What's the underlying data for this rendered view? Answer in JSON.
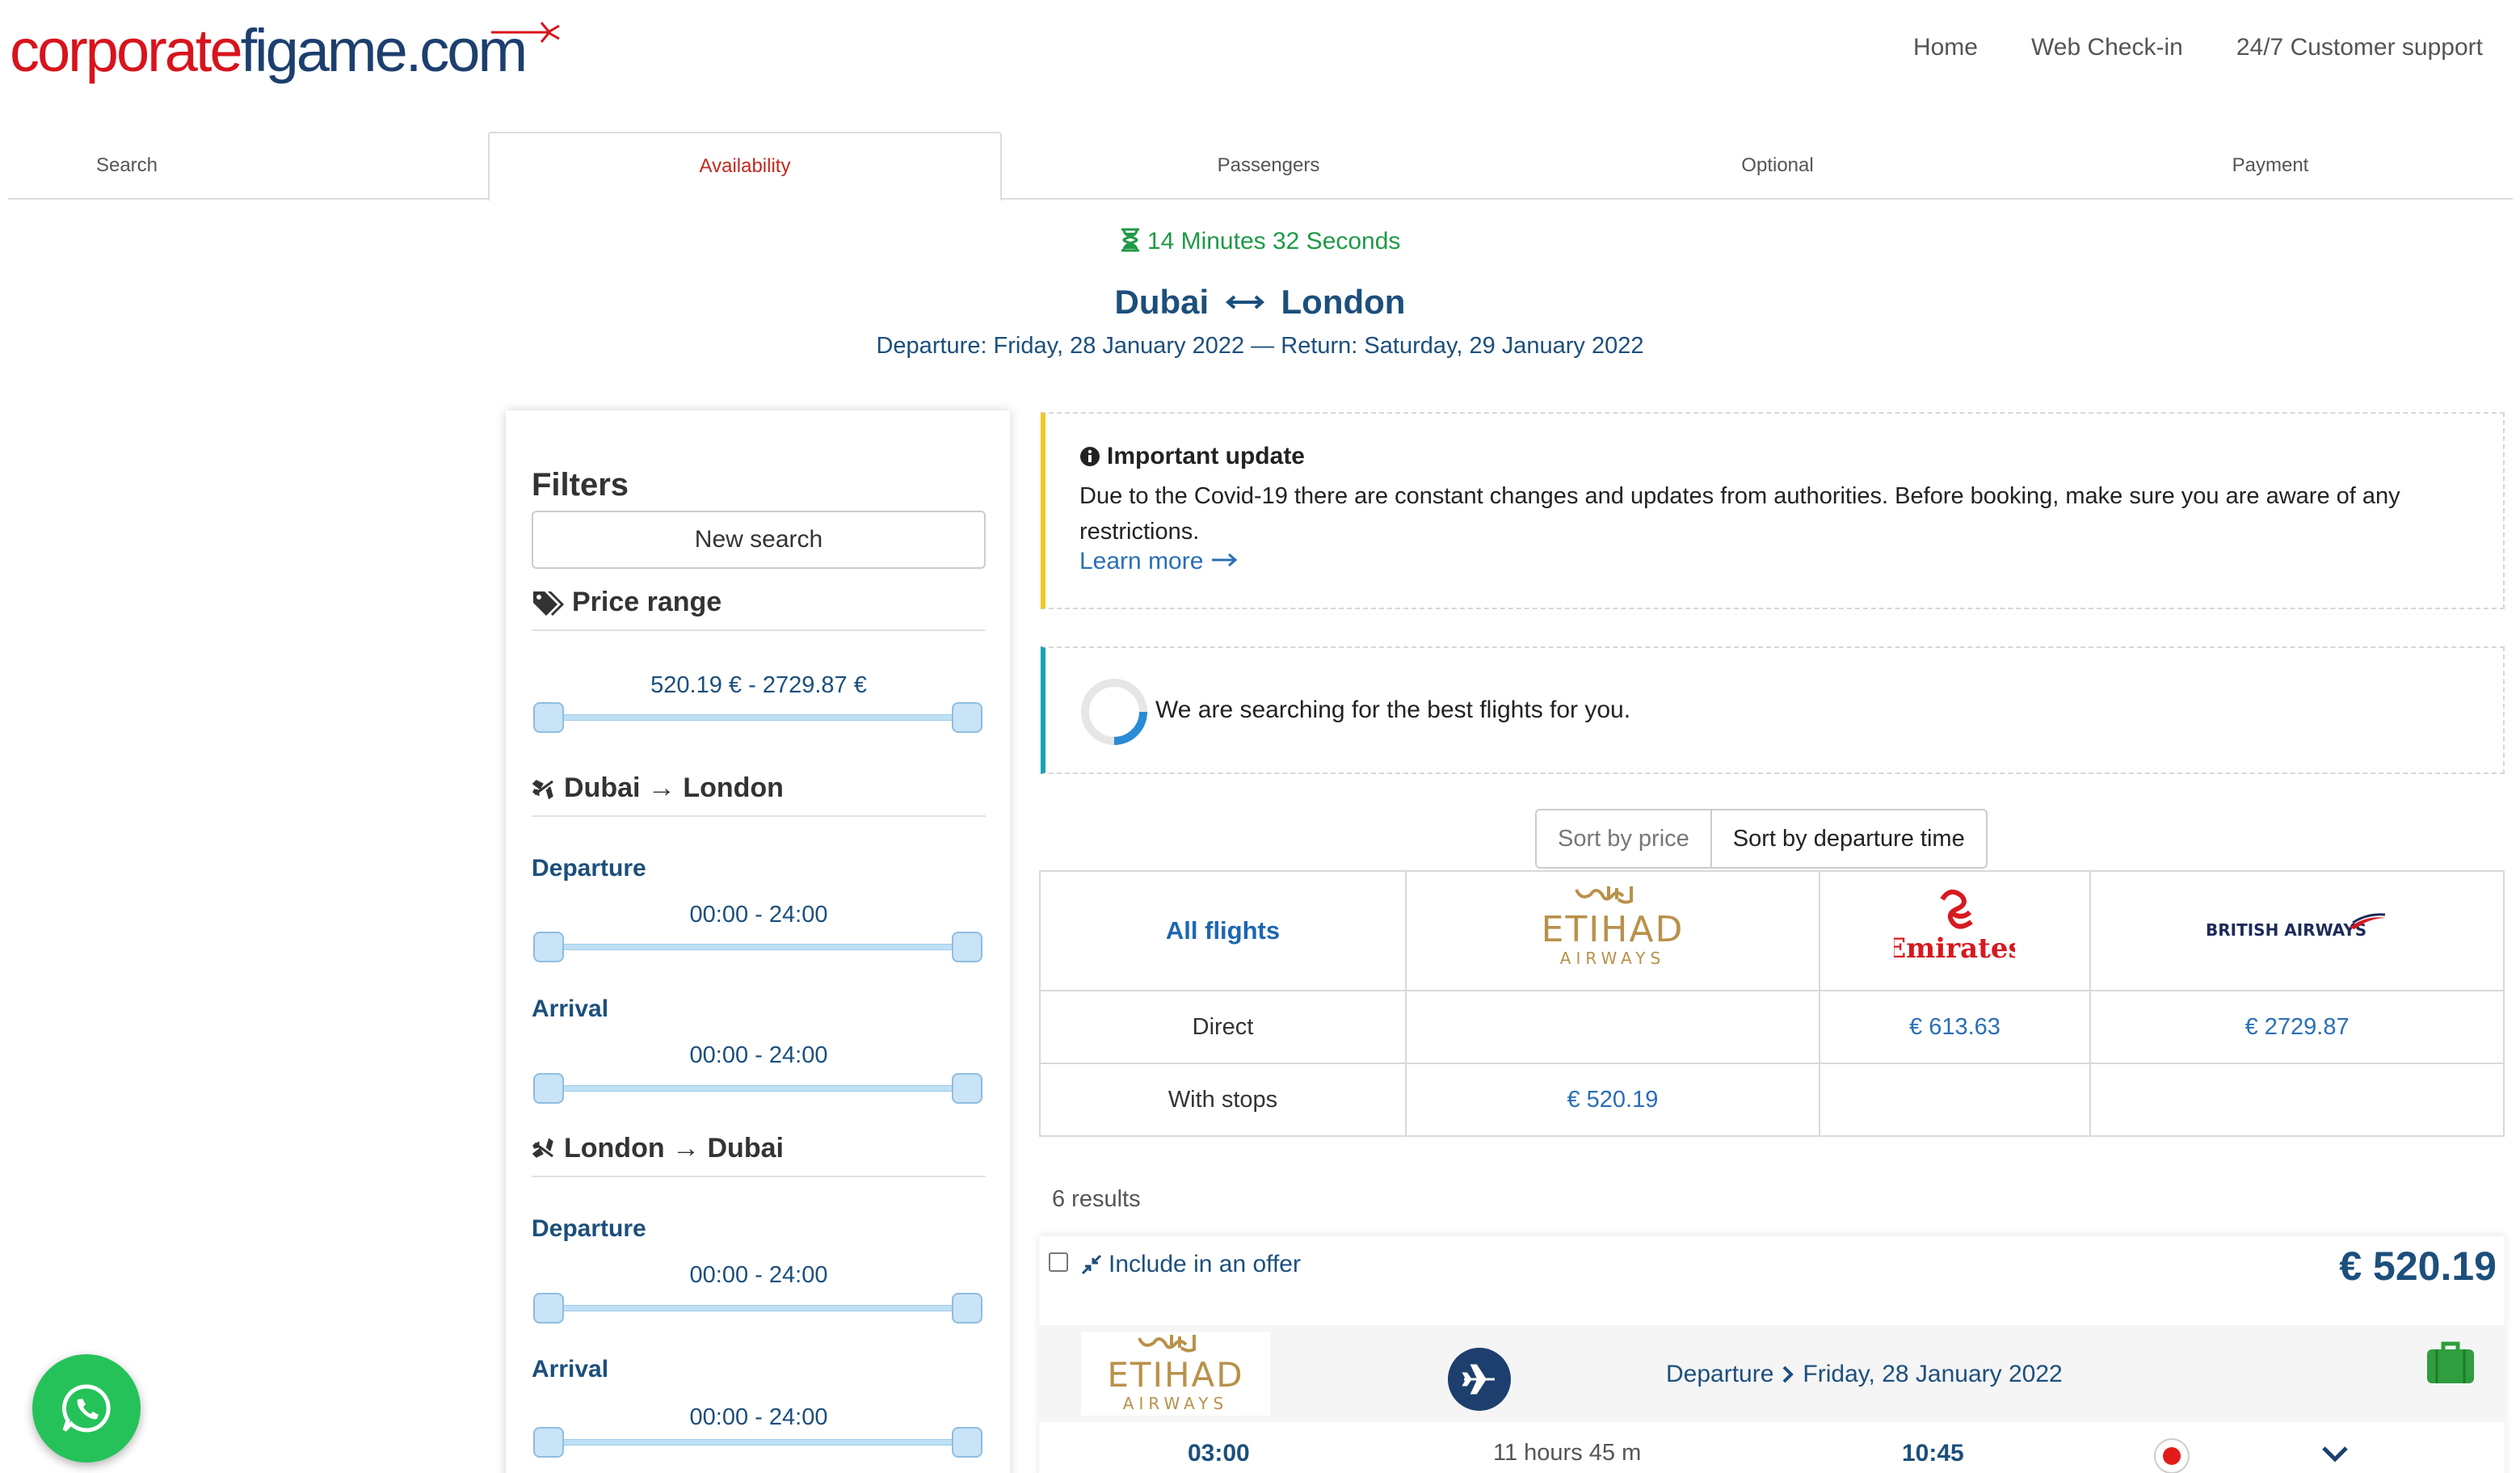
{
  "brand": {
    "logo_red": "corporate",
    "logo_blue": "figame.com"
  },
  "topnav": [
    "Home",
    "Web Check-in",
    "24/7 Customer support"
  ],
  "steps": [
    "Search",
    "Availability",
    "Passengers",
    "Optional",
    "Payment"
  ],
  "timer": "14 Minutes 32 Seconds",
  "route": {
    "from": "Dubai",
    "to": "London"
  },
  "dates": "Departure: Friday, 28 January 2022 — Return: Saturday, 29 January 2022",
  "filters": {
    "title": "Filters",
    "new_search": "New search",
    "price_range_title": "Price range",
    "price_range": "520.19 € - 2729.87 €",
    "outbound_title": "Dubai → London",
    "inbound_title": "London → Dubai",
    "departure_label": "Departure",
    "arrival_label": "Arrival",
    "time_range": "00:00 - 24:00"
  },
  "notice": {
    "title": "Important update",
    "body": "Due to the Covid-19 there are constant changes and updates from authorities. Before booking, make sure you are aware of any restrictions.",
    "link": "Learn more"
  },
  "searching": "We are searching for the best flights for you.",
  "sort": {
    "by_price": "Sort by price",
    "by_departure": "Sort by departure time"
  },
  "matrix": {
    "all_flights": "All flights",
    "airlines": [
      "Etihad Airways",
      "Emirates",
      "British Airways"
    ],
    "rows": [
      {
        "label": "Direct",
        "cells": [
          "",
          "€ 613.63",
          "€ 2729.87"
        ]
      },
      {
        "label": "With stops",
        "cells": [
          "€ 520.19",
          "",
          ""
        ]
      }
    ]
  },
  "results_count": "6 results",
  "card": {
    "offer_label": "Include in an offer",
    "price": "€ 520.19",
    "departure_label": "Departure",
    "departure_date": "Friday, 28 January 2022",
    "dep_time": "03:00",
    "duration": "11 hours 45 m",
    "arr_time": "10:45"
  },
  "colors": {
    "brand_red": "#d7141c",
    "brand_blue": "#1c3f6e",
    "link": "#2a6fb6",
    "timer_green": "#1f9a46",
    "whatsapp": "#25c25a"
  }
}
